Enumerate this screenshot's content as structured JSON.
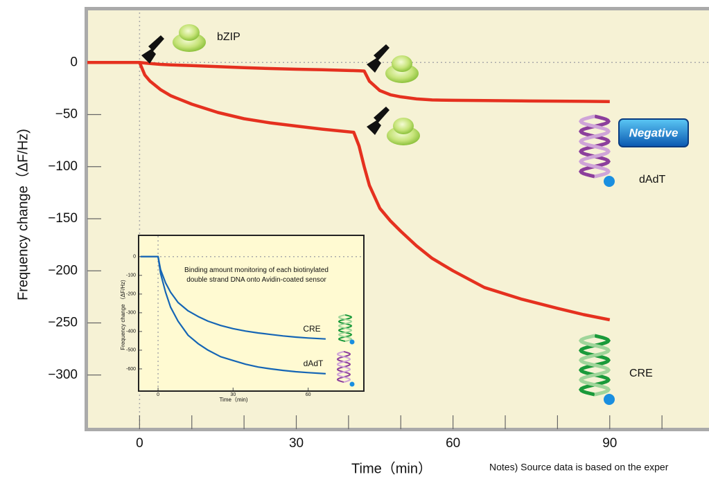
{
  "chart_data": [
    {
      "type": "line",
      "ylabel": "Frequency change（ΔF/Hz)",
      "xlabel": "Time（min）",
      "note": "Notes) Source data is based on the exper",
      "annotations": [
        "bZIP",
        "Negative"
      ],
      "xlim": [
        -10,
        109
      ],
      "ylim": [
        -352,
        52
      ],
      "xticks": [
        0,
        30,
        60,
        90
      ],
      "xminorticks": [
        10,
        20,
        40,
        50,
        70,
        80,
        100
      ],
      "yticks": [
        {
          "value": -300,
          "label": "−300"
        },
        {
          "value": -250,
          "label": "−250"
        },
        {
          "value": -200,
          "label": "−200"
        },
        {
          "value": -150,
          "label": "−150"
        },
        {
          "value": -100,
          "label": "−100"
        },
        {
          "value": -50,
          "label": "−50"
        },
        0
      ],
      "reference_lines": {
        "x": 0,
        "y": 0
      },
      "x": [
        -10,
        0,
        1,
        2,
        4,
        6,
        10,
        15,
        20,
        25,
        30,
        35,
        41,
        42,
        43,
        44,
        46,
        48,
        50,
        53,
        56,
        60,
        66,
        73,
        80,
        85,
        90
      ],
      "series": [
        {
          "name": "dAdT",
          "color": "#e5311f",
          "values": [
            0,
            0,
            -0.5,
            -1,
            -1.8,
            -2.3,
            -3,
            -4,
            -5,
            -5.8,
            -6.5,
            -7,
            -7.8,
            -8,
            -8.2,
            -18,
            -27,
            -31,
            -33,
            -35,
            -36,
            -36.3,
            -36.6,
            -36.9,
            -37.1,
            -37.3,
            -37.5
          ]
        },
        {
          "name": "CRE",
          "color": "#e5311f",
          "values": [
            0,
            0,
            -12,
            -18,
            -26,
            -32,
            -40,
            -48,
            -54,
            -58,
            -61,
            -64,
            -67,
            -80,
            -100,
            -118,
            -140,
            -152,
            -162,
            -176,
            -188,
            -200,
            -216,
            -227,
            -236,
            -242,
            -247
          ]
        }
      ]
    },
    {
      "type": "line",
      "title": "Binding amount monitoring of each biotinylated double strand DNA onto Avidin-coated sensor",
      "ylabel": "Frequency change （ΔF/Hz)",
      "xlabel": "Time（min)",
      "xlim": [
        -7.5,
        82
      ],
      "ylim": [
        -715,
        110
      ],
      "xticks": [
        0,
        30,
        60
      ],
      "yticks": [
        -600,
        -500,
        -400,
        -300,
        -200,
        -100,
        0
      ],
      "reference_lines": {
        "x": 0,
        "y": 0
      },
      "x": [
        -7,
        0,
        1,
        3,
        5,
        8,
        12,
        16,
        20,
        25,
        30,
        35,
        40,
        45,
        50,
        55,
        60,
        67
      ],
      "series": [
        {
          "name": "CRE",
          "color": "#1565b5",
          "values": [
            0,
            0,
            -70,
            -140,
            -190,
            -245,
            -290,
            -320,
            -345,
            -368,
            -385,
            -398,
            -408,
            -416,
            -424,
            -430,
            -435,
            -440
          ]
        },
        {
          "name": "dAdT",
          "color": "#1565b5",
          "values": [
            0,
            0,
            -90,
            -190,
            -270,
            -345,
            -420,
            -465,
            -500,
            -535,
            -555,
            -575,
            -590,
            -600,
            -608,
            -615,
            -620,
            -626
          ]
        }
      ]
    }
  ]
}
